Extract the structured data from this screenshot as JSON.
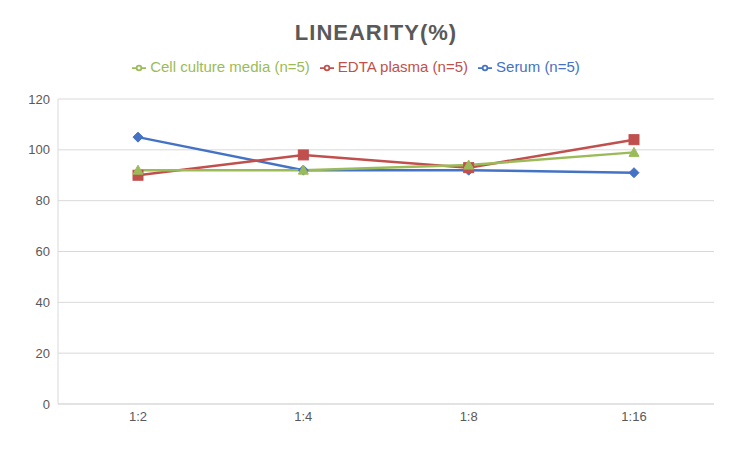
{
  "chart_data": {
    "type": "line",
    "title": "LINEARITY(%)",
    "categories": [
      "1:2",
      "1:4",
      "1:8",
      "1:16"
    ],
    "series": [
      {
        "name": "Serum (n=5)",
        "color": "#4472c4",
        "marker": "diamond",
        "values": [
          105,
          92,
          92,
          91
        ]
      },
      {
        "name": "EDTA plasma (n=5)",
        "color": "#c0504d",
        "marker": "square",
        "values": [
          90,
          98,
          93,
          104
        ]
      },
      {
        "name": "Cell culture media (n=5)",
        "color": "#9bbb59",
        "marker": "triangle",
        "values": [
          92,
          92,
          94,
          99
        ]
      }
    ],
    "ylim": [
      0,
      120
    ],
    "yticks": [
      0,
      20,
      40,
      60,
      80,
      100,
      120
    ],
    "grid": true,
    "legend": "top"
  }
}
